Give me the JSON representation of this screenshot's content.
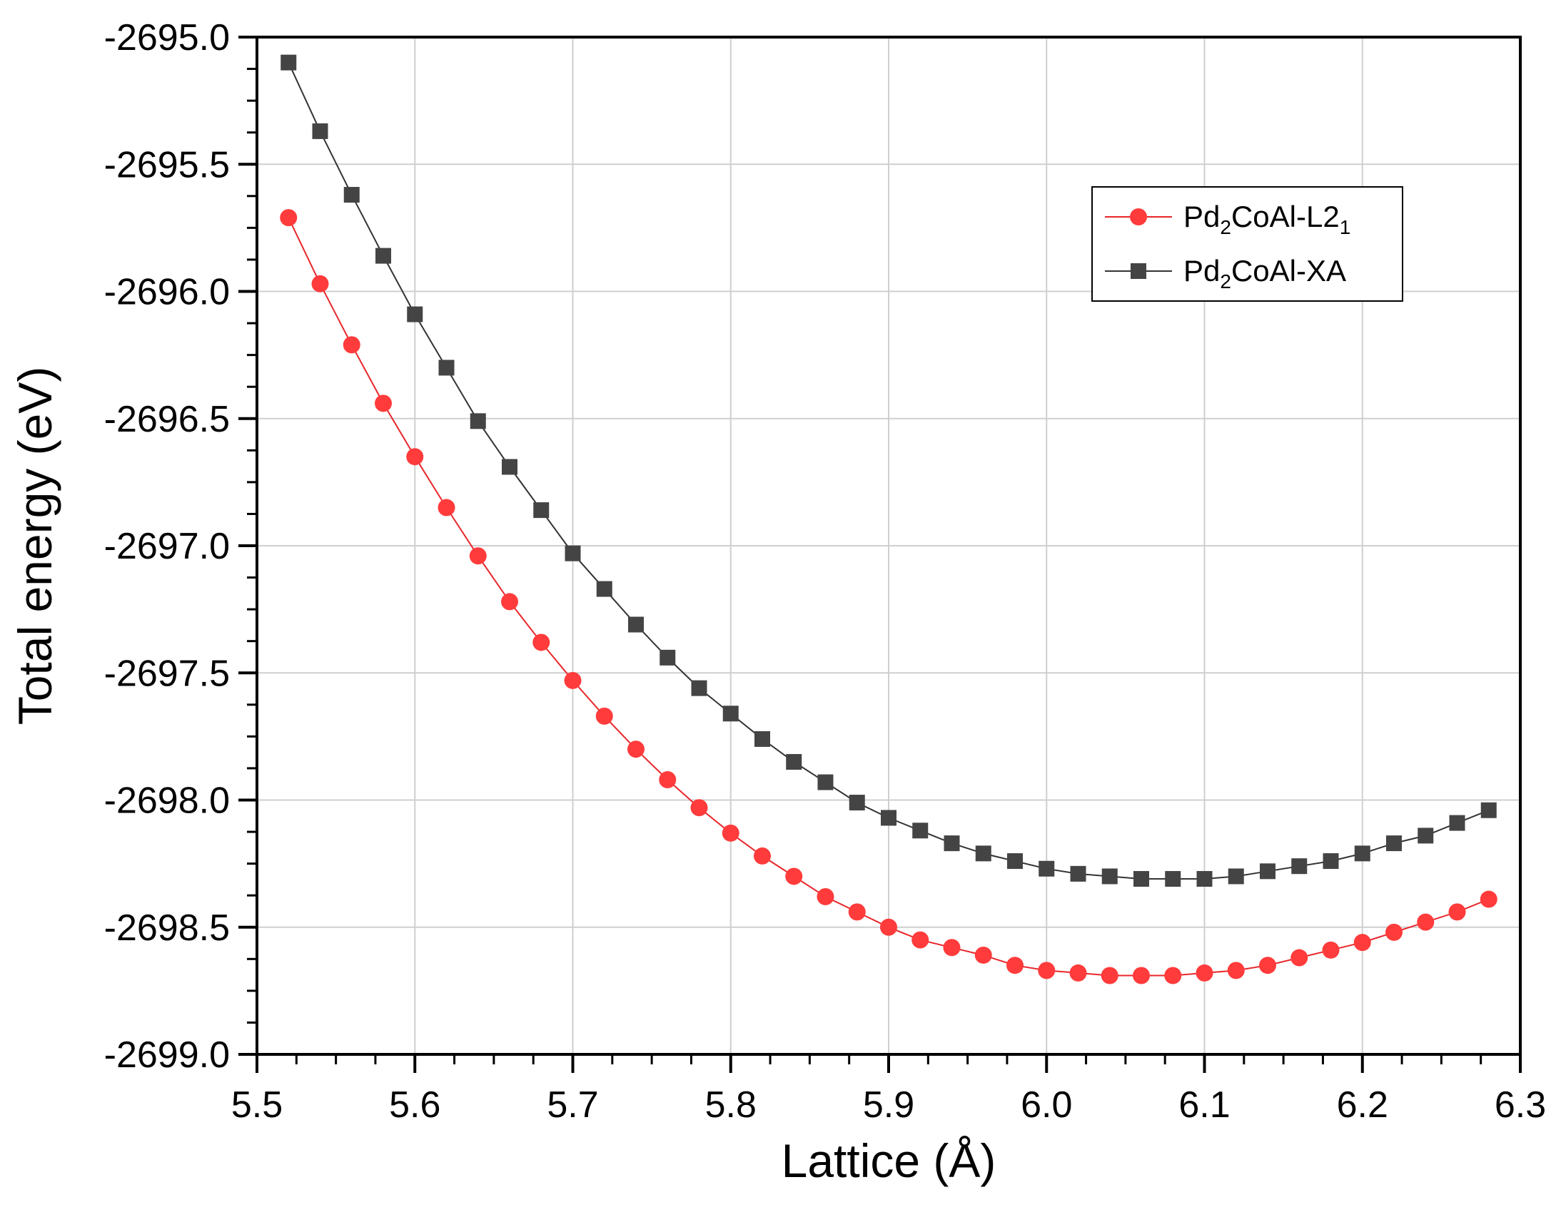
{
  "chart_data": {
    "type": "line",
    "title": "",
    "xlabel": "Lattice (Å)",
    "ylabel": "Total energy (eV)",
    "xlim": [
      5.5,
      6.3
    ],
    "ylim": [
      -2699.0,
      -2695.0
    ],
    "xticks": [
      "5.5",
      "5.6",
      "5.7",
      "5.8",
      "5.9",
      "6.0",
      "6.1",
      "6.2",
      "6.3"
    ],
    "yticks": [
      "-2695.0",
      "-2695.5",
      "-2696.0",
      "-2696.5",
      "-2697.0",
      "-2697.5",
      "-2698.0",
      "-2698.5",
      "-2699.0"
    ],
    "grid": true,
    "legend_position": "top-right",
    "x": [
      5.52,
      5.54,
      5.56,
      5.58,
      5.6,
      5.62,
      5.64,
      5.66,
      5.68,
      5.7,
      5.72,
      5.74,
      5.76,
      5.78,
      5.8,
      5.82,
      5.84,
      5.86,
      5.88,
      5.9,
      5.92,
      5.94,
      5.96,
      5.98,
      6.0,
      6.02,
      6.04,
      6.06,
      6.08,
      6.1,
      6.12,
      6.14,
      6.16,
      6.18,
      6.2,
      6.22,
      6.24,
      6.26,
      6.28
    ],
    "series": [
      {
        "name": "Pd2CoAl-L21",
        "legend_main": "Pd",
        "legend_sub1": "2",
        "legend_mid": "CoAl-L2",
        "legend_sub2": "1",
        "color": "#ff3b3b",
        "line_color": "#e8262a",
        "marker": "circle",
        "values": [
          -2695.71,
          -2695.97,
          -2696.21,
          -2696.44,
          -2696.65,
          -2696.85,
          -2697.04,
          -2697.22,
          -2697.38,
          -2697.53,
          -2697.67,
          -2697.8,
          -2697.92,
          -2698.03,
          -2698.13,
          -2698.22,
          -2698.3,
          -2698.38,
          -2698.44,
          -2698.5,
          -2698.55,
          -2698.58,
          -2698.61,
          -2698.65,
          -2698.67,
          -2698.68,
          -2698.69,
          -2698.69,
          -2698.69,
          -2698.68,
          -2698.67,
          -2698.65,
          -2698.62,
          -2698.59,
          -2698.56,
          -2698.52,
          -2698.48,
          -2698.44,
          -2698.39
        ]
      },
      {
        "name": "Pd2CoAl-XA",
        "legend_main": "Pd",
        "legend_sub1": "2",
        "legend_mid": "CoAl-XA",
        "legend_sub2": "",
        "color": "#444444",
        "line_color": "#333333",
        "marker": "square",
        "values": [
          -2695.1,
          -2695.37,
          -2695.62,
          -2695.86,
          -2696.09,
          -2696.3,
          -2696.51,
          -2696.69,
          -2696.86,
          -2697.03,
          -2697.17,
          -2697.31,
          -2697.44,
          -2697.56,
          -2697.66,
          -2697.76,
          -2697.85,
          -2697.93,
          -2698.01,
          -2698.07,
          -2698.12,
          -2698.17,
          -2698.21,
          -2698.24,
          -2698.27,
          -2698.29,
          -2698.3,
          -2698.31,
          -2698.31,
          -2698.31,
          -2698.3,
          -2698.28,
          -2698.26,
          -2698.24,
          -2698.21,
          -2698.17,
          -2698.14,
          -2698.09,
          -2698.04
        ]
      }
    ]
  }
}
